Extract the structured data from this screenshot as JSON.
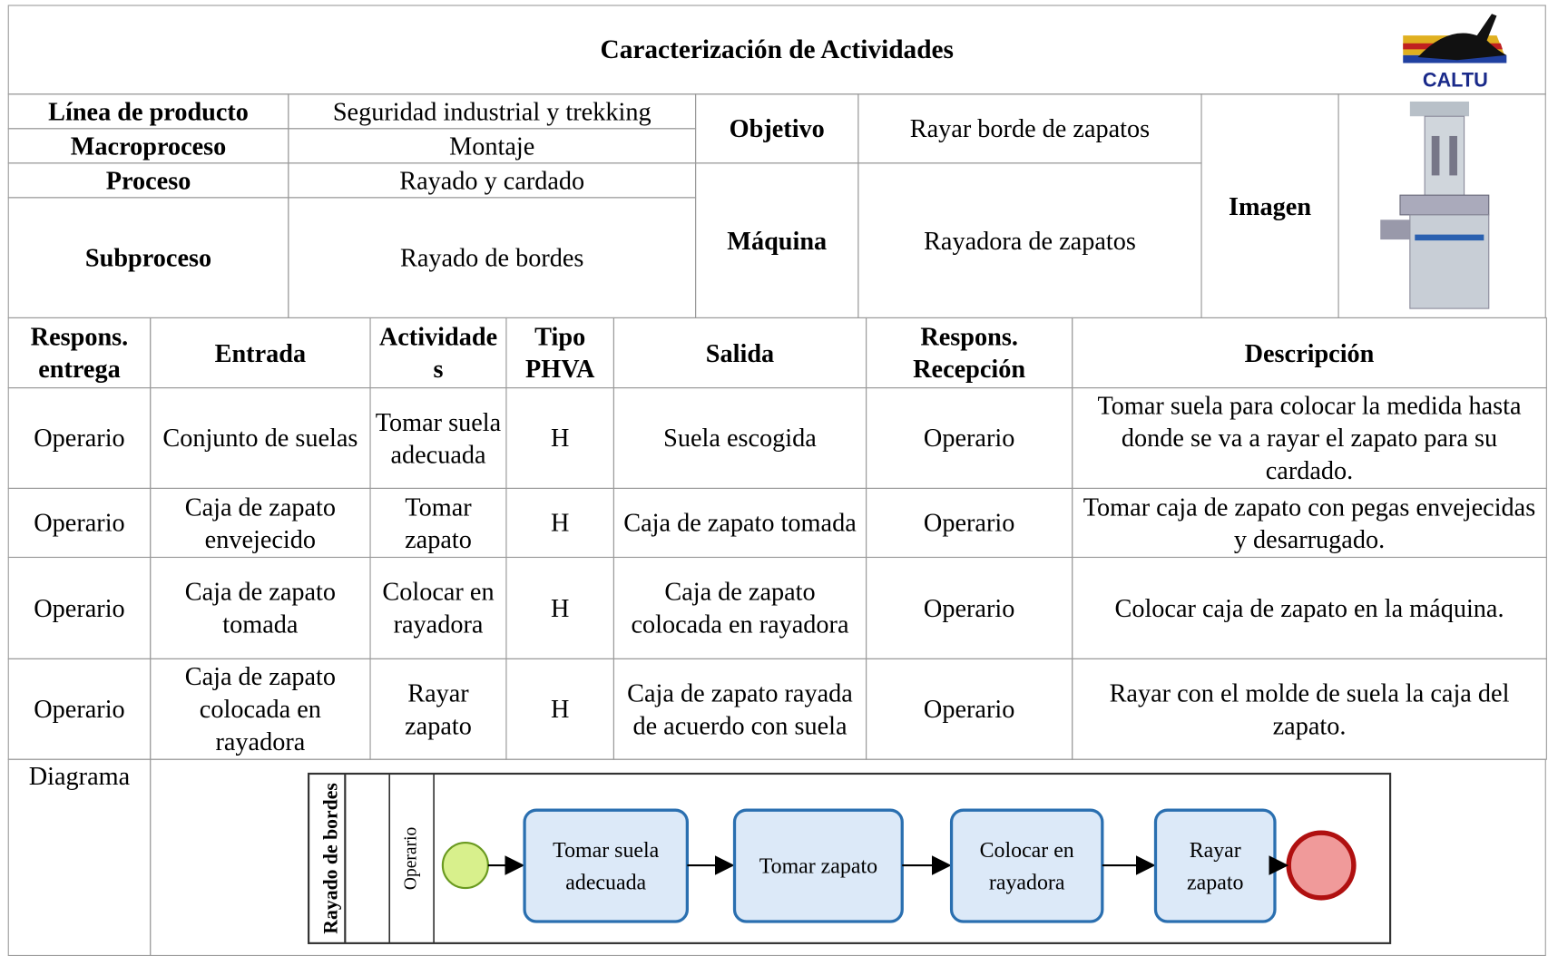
{
  "header": {
    "title": "Caracterización de Actividades",
    "logo_text": "CALTU"
  },
  "info": {
    "linea_label": "Línea de producto",
    "linea_value": "Seguridad industrial y trekking",
    "macro_label": "Macroproceso",
    "macro_value": "Montaje",
    "proceso_label": "Proceso",
    "proceso_value": "Rayado y cardado",
    "subproceso_label": "Subproceso",
    "subproceso_value": "Rayado de bordes",
    "objetivo_label": "Objetivo",
    "objetivo_value": "Rayar borde de zapatos",
    "maquina_label": "Máquina",
    "maquina_value": "Rayadora de zapatos",
    "imagen_label": "Imagen"
  },
  "table": {
    "headers": [
      "Respons. entrega",
      "Entrada",
      "Actividades",
      "Tipo PHVA",
      "Salida",
      "Respons. Recepción",
      "Descripción"
    ],
    "rows": [
      [
        "Operario",
        "Conjunto de suelas",
        "Tomar suela adecuada",
        "H",
        "Suela escogida",
        "Operario",
        "Tomar suela para colocar la medida hasta donde se va a rayar el zapato para su cardado."
      ],
      [
        "Operario",
        "Caja de zapato envejecido",
        "Tomar zapato",
        "H",
        "Caja de zapato tomada",
        "Operario",
        "Tomar caja de zapato con pegas envejecidas y desarrugado."
      ],
      [
        "Operario",
        "Caja de zapato tomada",
        "Colocar en rayadora",
        "H",
        "Caja de zapato colocada en rayadora",
        "Operario",
        "Colocar caja de zapato en la máquina."
      ],
      [
        "Operario",
        "Caja de zapato colocada en rayadora",
        "Rayar zapato",
        "H",
        "Caja de zapato rayada de acuerdo con suela",
        "Operario",
        "Rayar con el molde de suela la caja del zapato."
      ]
    ]
  },
  "diagram": {
    "label": "Diagrama",
    "pool": "Rayado de bordes",
    "lane": "Operario",
    "tasks": [
      "Tomar suela adecuada",
      "Tomar zapato",
      "Colocar en rayadora",
      "Rayar zapato"
    ]
  }
}
